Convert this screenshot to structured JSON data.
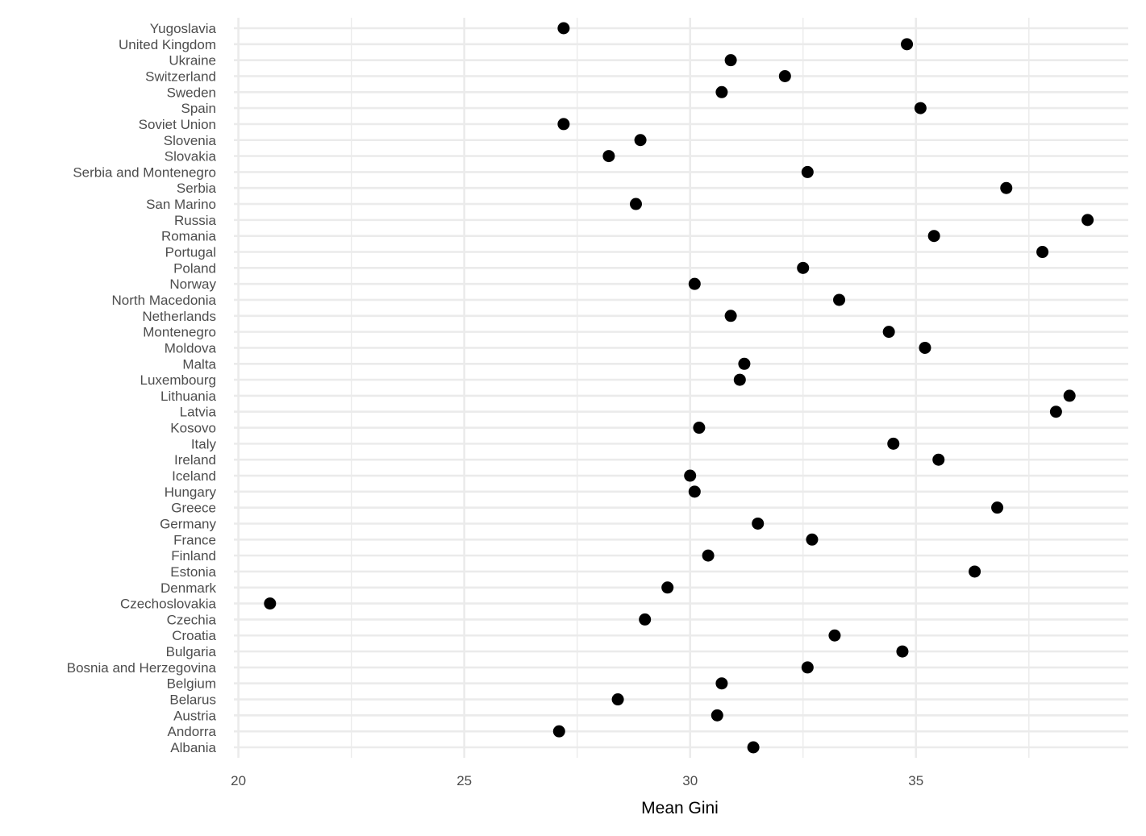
{
  "chart_data": {
    "type": "scatter",
    "title": "",
    "xlabel": "Mean Gini",
    "ylabel": "",
    "xlim": [
      19.9,
      39.7
    ],
    "xticks": [
      20,
      25,
      30,
      35
    ],
    "x_minor_gridlines": [
      22.5,
      27.5,
      32.5,
      37.5
    ],
    "grid": true,
    "legend": "none",
    "point_color": "#000000",
    "categories": [
      "Albania",
      "Andorra",
      "Austria",
      "Belarus",
      "Belgium",
      "Bosnia and Herzegovina",
      "Bulgaria",
      "Croatia",
      "Czechia",
      "Czechoslovakia",
      "Denmark",
      "Estonia",
      "Finland",
      "France",
      "Germany",
      "Greece",
      "Hungary",
      "Iceland",
      "Ireland",
      "Italy",
      "Kosovo",
      "Latvia",
      "Lithuania",
      "Luxembourg",
      "Malta",
      "Moldova",
      "Montenegro",
      "Netherlands",
      "North Macedonia",
      "Norway",
      "Poland",
      "Portugal",
      "Romania",
      "Russia",
      "San Marino",
      "Serbia",
      "Serbia and Montenegro",
      "Slovakia",
      "Slovenia",
      "Soviet Union",
      "Spain",
      "Sweden",
      "Switzerland",
      "Ukraine",
      "United Kingdom",
      "Yugoslavia"
    ],
    "values": [
      31.4,
      27.1,
      30.6,
      28.4,
      30.7,
      32.6,
      34.7,
      33.2,
      29.0,
      20.7,
      29.5,
      36.3,
      30.4,
      32.7,
      31.5,
      36.8,
      30.1,
      30.0,
      35.5,
      34.5,
      30.2,
      38.1,
      38.4,
      31.1,
      31.2,
      35.2,
      34.4,
      30.9,
      33.3,
      30.1,
      32.5,
      37.8,
      35.4,
      38.8,
      28.8,
      37.0,
      32.6,
      28.2,
      28.9,
      27.2,
      35.1,
      30.7,
      32.1,
      30.9,
      34.8,
      27.2
    ]
  }
}
